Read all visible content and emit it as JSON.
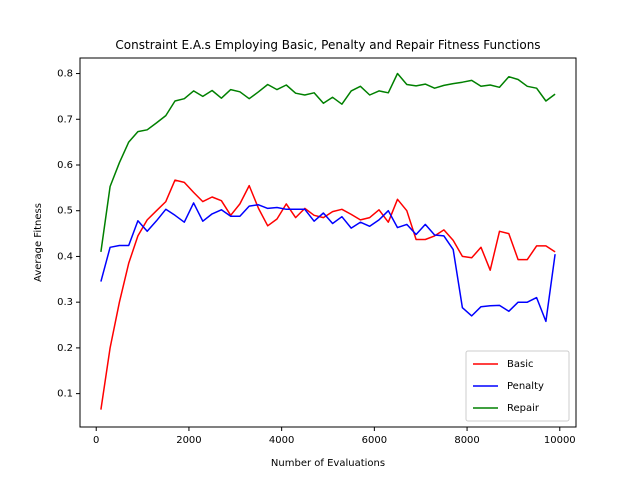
{
  "chart_data": {
    "type": "line",
    "title": "Constraint E.A.s Employing  Basic, Penalty and Repair Fitness Functions",
    "xlabel": "Number of Evaluations",
    "ylabel": "Average Fitness",
    "xlim": [
      -350,
      10350
    ],
    "ylim": [
      0.027,
      0.834
    ],
    "xticks": [
      0,
      2000,
      4000,
      6000,
      8000,
      10000
    ],
    "xtick_labels": [
      "0",
      "2000",
      "4000",
      "6000",
      "8000",
      "10000"
    ],
    "yticks": [
      0.1,
      0.2,
      0.3,
      0.4,
      0.5,
      0.6,
      0.7,
      0.8
    ],
    "ytick_labels": [
      "0.1",
      "0.2",
      "0.3",
      "0.4",
      "0.5",
      "0.6",
      "0.7",
      "0.8"
    ],
    "grid": false,
    "legend_position": "lower-right",
    "x": [
      100,
      300,
      500,
      700,
      900,
      1100,
      1300,
      1500,
      1700,
      1900,
      2100,
      2300,
      2500,
      2700,
      2900,
      3100,
      3300,
      3500,
      3700,
      3900,
      4100,
      4300,
      4500,
      4700,
      4900,
      5100,
      5300,
      5500,
      5700,
      5900,
      6100,
      6300,
      6500,
      6700,
      6900,
      7100,
      7300,
      7500,
      7700,
      7900,
      8100,
      8300,
      8500,
      8700,
      8900,
      9100,
      9300,
      9500,
      9700,
      9900
    ],
    "series": [
      {
        "name": "Basic",
        "color": "#ff0000",
        "values": [
          0.065,
          0.2,
          0.3,
          0.385,
          0.445,
          0.48,
          0.5,
          0.52,
          0.567,
          0.562,
          0.54,
          0.52,
          0.53,
          0.522,
          0.49,
          0.515,
          0.555,
          0.505,
          0.467,
          0.482,
          0.515,
          0.485,
          0.505,
          0.49,
          0.485,
          0.498,
          0.503,
          0.492,
          0.48,
          0.485,
          0.502,
          0.475,
          0.525,
          0.5,
          0.437,
          0.437,
          0.445,
          0.458,
          0.435,
          0.4,
          0.397,
          0.42,
          0.37,
          0.455,
          0.45,
          0.393,
          0.393,
          0.423,
          0.423,
          0.41
        ]
      },
      {
        "name": "Penalty",
        "color": "#0000ff",
        "values": [
          0.345,
          0.42,
          0.424,
          0.424,
          0.478,
          0.455,
          0.478,
          0.503,
          0.49,
          0.475,
          0.517,
          0.477,
          0.493,
          0.502,
          0.488,
          0.488,
          0.51,
          0.513,
          0.505,
          0.507,
          0.503,
          0.503,
          0.503,
          0.477,
          0.495,
          0.472,
          0.487,
          0.462,
          0.475,
          0.466,
          0.48,
          0.5,
          0.463,
          0.47,
          0.448,
          0.47,
          0.447,
          0.445,
          0.415,
          0.288,
          0.27,
          0.29,
          0.292,
          0.293,
          0.28,
          0.3,
          0.3,
          0.31,
          0.258,
          0.405
        ]
      },
      {
        "name": "Repair",
        "color": "#008000",
        "values": [
          0.41,
          0.553,
          0.605,
          0.65,
          0.673,
          0.677,
          0.692,
          0.708,
          0.74,
          0.745,
          0.762,
          0.75,
          0.763,
          0.746,
          0.765,
          0.76,
          0.745,
          0.76,
          0.776,
          0.765,
          0.775,
          0.757,
          0.753,
          0.758,
          0.735,
          0.748,
          0.733,
          0.762,
          0.772,
          0.753,
          0.762,
          0.758,
          0.8,
          0.776,
          0.773,
          0.777,
          0.768,
          0.774,
          0.778,
          0.781,
          0.785,
          0.772,
          0.775,
          0.77,
          0.793,
          0.787,
          0.772,
          0.768,
          0.74,
          0.755
        ]
      }
    ]
  }
}
